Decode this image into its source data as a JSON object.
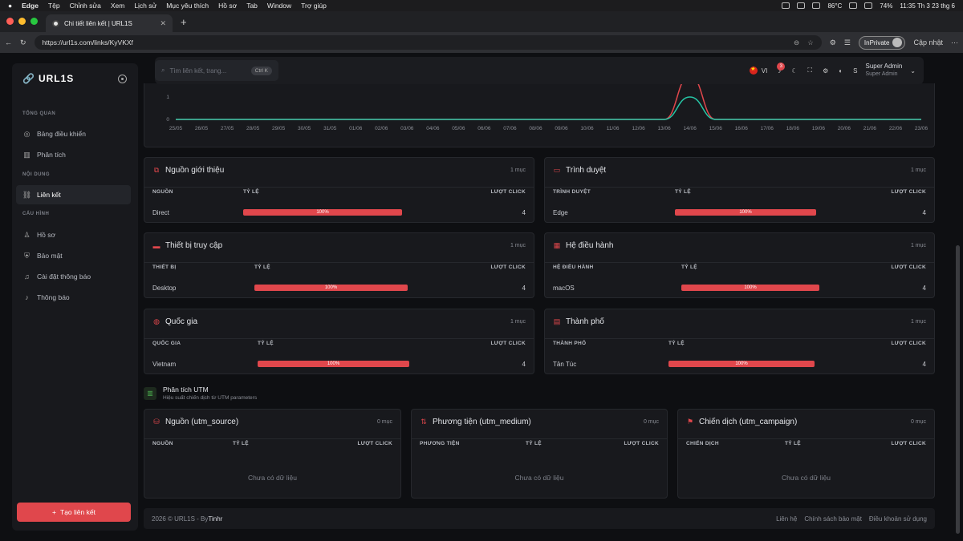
{
  "mac_menu": {
    "apple": "",
    "app": "Edge",
    "items": [
      "Tệp",
      "Chỉnh sửa",
      "Xem",
      "Lịch sử",
      "Mục yêu thích",
      "Hồ sơ",
      "Tab",
      "Window",
      "Trợ giúp"
    ],
    "temp": "86°C",
    "battery": "74%",
    "clock": "11:35 Th 3 23 thg 6"
  },
  "browser": {
    "tab_title": "Chi tiết liên kết | URL1S",
    "url": "https://url1s.com/links/KyVKXf",
    "inprivate": "InPrivate",
    "update": "Cập nhật"
  },
  "sidebar": {
    "logo": "URL1S",
    "sections": [
      {
        "title": "TỔNG QUAN",
        "items": [
          {
            "label": "Bảng điều khiển"
          },
          {
            "label": "Phân tích"
          }
        ]
      },
      {
        "title": "NỘI DUNG",
        "items": [
          {
            "label": "Liên kết"
          }
        ]
      },
      {
        "title": "CẤU HÌNH",
        "items": [
          {
            "label": "Hồ sơ"
          },
          {
            "label": "Bảo mật"
          },
          {
            "label": "Cài đặt thông báo"
          },
          {
            "label": "Thông báo"
          }
        ]
      }
    ],
    "create_button": "Tạo liên kết"
  },
  "topbar": {
    "search_placeholder": "Tìm liên kết, trang...",
    "shortcut": "Ctrl K",
    "lang": "VI",
    "notif_count": "3",
    "user_name": "Super Admin",
    "user_role": "Super Admin",
    "avatar_letter": "S"
  },
  "chart_data": {
    "type": "line",
    "x": [
      "25/05",
      "26/05",
      "27/05",
      "28/05",
      "29/05",
      "30/05",
      "31/05",
      "01/06",
      "02/06",
      "03/06",
      "04/06",
      "05/06",
      "06/06",
      "07/06",
      "08/06",
      "09/06",
      "10/06",
      "11/06",
      "12/06",
      "13/06",
      "14/06",
      "15/06",
      "16/06",
      "17/06",
      "18/06",
      "19/06",
      "20/06",
      "21/06",
      "22/06",
      "23/06"
    ],
    "yticks": [
      "0",
      "1"
    ],
    "series": [
      {
        "color": "#e0474c",
        "values": [
          0,
          0,
          0,
          0,
          0,
          0,
          0,
          0,
          0,
          0,
          0,
          0,
          0,
          0,
          0,
          0,
          0,
          0,
          0,
          0,
          4,
          0,
          0,
          0,
          0,
          0,
          0,
          0,
          0,
          0
        ]
      },
      {
        "color": "#26c6a6",
        "values": [
          0,
          0,
          0,
          0,
          0,
          0,
          0,
          0,
          0,
          0,
          0,
          0,
          0,
          0,
          0,
          0,
          0,
          0,
          0,
          0,
          1,
          0,
          0,
          0,
          0,
          0,
          0,
          0,
          0,
          0
        ]
      }
    ]
  },
  "panels": [
    {
      "title": "Nguồn giới thiệu",
      "count": "1 mục",
      "c1": "NGUỒN",
      "c2": "TỶ LỆ",
      "c3": "LƯỢT CLICK",
      "row": {
        "name": "Direct",
        "pct": "100%",
        "clicks": "4"
      }
    },
    {
      "title": "Trình duyệt",
      "count": "1 mục",
      "c1": "TRÌNH DUYỆT",
      "c2": "TỶ LỆ",
      "c3": "LƯỢT CLICK",
      "row": {
        "name": "Edge",
        "pct": "100%",
        "clicks": "4"
      }
    },
    {
      "title": "Thiết bị truy cập",
      "count": "1 mục",
      "c1": "THIẾT BỊ",
      "c2": "TỶ LỆ",
      "c3": "LƯỢT CLICK",
      "row": {
        "name": "Desktop",
        "pct": "100%",
        "clicks": "4"
      }
    },
    {
      "title": "Hệ điều hành",
      "count": "1 mục",
      "c1": "HỆ ĐIỀU HÀNH",
      "c2": "TỶ LỆ",
      "c3": "LƯỢT CLICK",
      "row": {
        "name": "macOS",
        "pct": "100%",
        "clicks": "4"
      }
    },
    {
      "title": "Quốc gia",
      "count": "1 mục",
      "c1": "QUỐC GIA",
      "c2": "TỶ LỆ",
      "c3": "LƯỢT CLICK",
      "row": {
        "name": "Vietnam",
        "pct": "100%",
        "clicks": "4"
      }
    },
    {
      "title": "Thành phố",
      "count": "1 mục",
      "c1": "THÀNH PHỐ",
      "c2": "TỶ LỆ",
      "c3": "LƯỢT CLICK",
      "row": {
        "name": "Tân Túc",
        "pct": "100%",
        "clicks": "4"
      }
    }
  ],
  "utm": {
    "title": "Phân tích UTM",
    "subtitle": "Hiệu suất chiến dịch từ UTM parameters",
    "panels": [
      {
        "title": "Nguồn (utm_source)",
        "count": "0 mục",
        "c1": "NGUỒN",
        "c2": "TỶ LỆ",
        "c3": "LƯỢT CLICK",
        "empty": "Chưa có dữ liệu"
      },
      {
        "title": "Phương tiện (utm_medium)",
        "count": "0 mục",
        "c1": "PHƯƠNG TIỆN",
        "c2": "TỶ LỆ",
        "c3": "LƯỢT CLICK",
        "empty": "Chưa có dữ liệu"
      },
      {
        "title": "Chiến dịch (utm_campaign)",
        "count": "0 mục",
        "c1": "CHIẾN DỊCH",
        "c2": "TỶ LỆ",
        "c3": "LƯỢT CLICK",
        "empty": "Chưa có dữ liệu"
      }
    ]
  },
  "footer": {
    "copyright": "2026 © URL1S - By ",
    "author": "Tinhr",
    "links": [
      "Liên hệ",
      "Chính sách bảo mật",
      "Điều khoản sử dụng"
    ]
  }
}
